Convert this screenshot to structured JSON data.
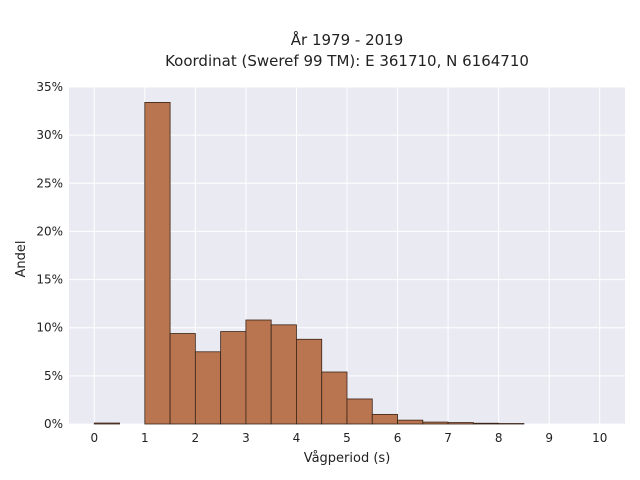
{
  "chart_data": {
    "type": "bar",
    "title": [
      "År 1979 - 2019",
      "Koordinat (Sweref 99 TM): E 361710, N 6164710"
    ],
    "xlabel": "Vågperiod (s)",
    "ylabel": "Andel",
    "xlim": [
      -0.5,
      10.5
    ],
    "ylim": [
      0,
      0.35
    ],
    "xticks": [
      0,
      1,
      2,
      3,
      4,
      5,
      6,
      7,
      8,
      9,
      10
    ],
    "yticks": [
      0,
      0.05,
      0.1,
      0.15,
      0.2,
      0.25,
      0.3,
      0.35
    ],
    "ytick_labels": [
      "0%",
      "5%",
      "10%",
      "15%",
      "20%",
      "25%",
      "30%",
      "35%"
    ],
    "bin_width": 0.5,
    "bins": [
      {
        "x0": 0.0,
        "value": 0.001
      },
      {
        "x0": 0.5,
        "value": 0.0
      },
      {
        "x0": 1.0,
        "value": 0.334
      },
      {
        "x0": 1.5,
        "value": 0.094
      },
      {
        "x0": 2.0,
        "value": 0.075
      },
      {
        "x0": 2.5,
        "value": 0.096
      },
      {
        "x0": 3.0,
        "value": 0.108
      },
      {
        "x0": 3.5,
        "value": 0.103
      },
      {
        "x0": 4.0,
        "value": 0.088
      },
      {
        "x0": 4.5,
        "value": 0.054
      },
      {
        "x0": 5.0,
        "value": 0.026
      },
      {
        "x0": 5.5,
        "value": 0.01
      },
      {
        "x0": 6.0,
        "value": 0.004
      },
      {
        "x0": 6.5,
        "value": 0.002
      },
      {
        "x0": 7.0,
        "value": 0.0015
      },
      {
        "x0": 7.5,
        "value": 0.0008
      },
      {
        "x0": 8.0,
        "value": 0.0005
      }
    ],
    "grid": true,
    "colors": {
      "bar": "#b87550",
      "bar_edge": "#3a2418",
      "plot_bg": "#eaeaf2",
      "grid": "#ffffff"
    }
  }
}
